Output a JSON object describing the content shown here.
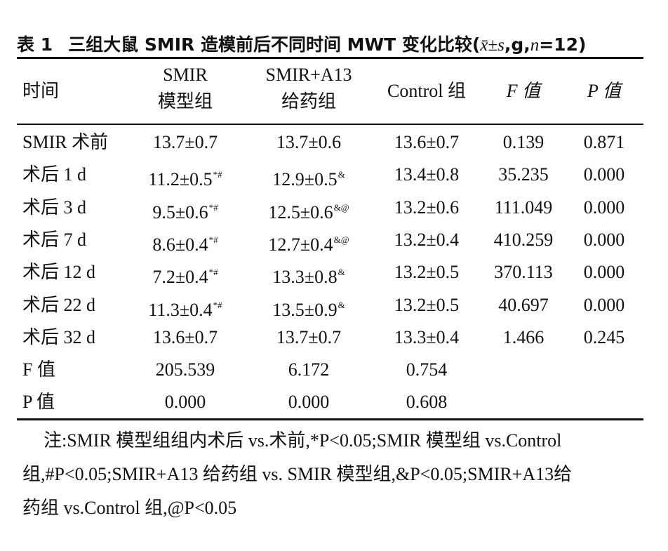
{
  "title": {
    "label": "表 1",
    "text": "三组大鼠 SMIR 造模前后不同时间 MWT 变化比较(",
    "stat": "x̄±s",
    "mid": ",g,",
    "n": "n",
    "tail": "=12)"
  },
  "headers": [
    {
      "line1": "时间",
      "line2": ""
    },
    {
      "line1": "SMIR",
      "line2": "模型组"
    },
    {
      "line1": "SMIR+A13",
      "line2": "给药组"
    },
    {
      "line1": "Control 组",
      "line2": ""
    },
    {
      "line1": "F 值",
      "line2": ""
    },
    {
      "line1": "P 值",
      "line2": ""
    }
  ],
  "rows": [
    {
      "time": "SMIR 术前",
      "smir": "13.7±0.7",
      "smir_sup": "",
      "a13": "13.7±0.6",
      "a13_sup": "",
      "control": "13.6±0.7",
      "f": "0.139",
      "p": "0.871"
    },
    {
      "time": "术后 1 d",
      "smir": "11.2±0.5",
      "smir_sup": "*#",
      "a13": "12.9±0.5",
      "a13_sup": "&",
      "control": "13.4±0.8",
      "f": "35.235",
      "p": "0.000"
    },
    {
      "time": "术后 3 d",
      "smir": "9.5±0.6",
      "smir_sup": "*#",
      "a13": "12.5±0.6",
      "a13_sup": "&@",
      "control": "13.2±0.6",
      "f": "111.049",
      "p": "0.000"
    },
    {
      "time": "术后 7 d",
      "smir": "8.6±0.4",
      "smir_sup": "*#",
      "a13": "12.7±0.4",
      "a13_sup": "&@",
      "control": "13.2±0.4",
      "f": "410.259",
      "p": "0.000"
    },
    {
      "time": "术后 12 d",
      "smir": "7.2±0.4",
      "smir_sup": "*#",
      "a13": "13.3±0.8",
      "a13_sup": "&",
      "control": "13.2±0.5",
      "f": "370.113",
      "p": "0.000"
    },
    {
      "time": "术后 22 d",
      "smir": "11.3±0.4",
      "smir_sup": "*#",
      "a13": "13.5±0.9",
      "a13_sup": "&",
      "control": "13.2±0.5",
      "f": "40.697",
      "p": "0.000"
    },
    {
      "time": "术后 32 d",
      "smir": "13.6±0.7",
      "smir_sup": "",
      "a13": "13.7±0.7",
      "a13_sup": "",
      "control": "13.3±0.4",
      "f": "1.466",
      "p": "0.245"
    },
    {
      "time": "F 值",
      "smir": "205.539",
      "smir_sup": "",
      "a13": "6.172",
      "a13_sup": "",
      "control": "0.754",
      "f": "",
      "p": ""
    },
    {
      "time": "P 值",
      "smir": "0.000",
      "smir_sup": "",
      "a13": "0.000",
      "a13_sup": "",
      "control": "0.608",
      "f": "",
      "p": ""
    }
  ],
  "note": {
    "line1": "注:SMIR 模型组组内术后 vs.术前,*P<0.05;SMIR 模型组 vs.Control",
    "line2": "组,#P<0.05;SMIR+A13 给药组 vs. SMIR 模型组,&P<0.05;SMIR+A13给",
    "line3": "药组 vs.Control 组,@P<0.05"
  }
}
